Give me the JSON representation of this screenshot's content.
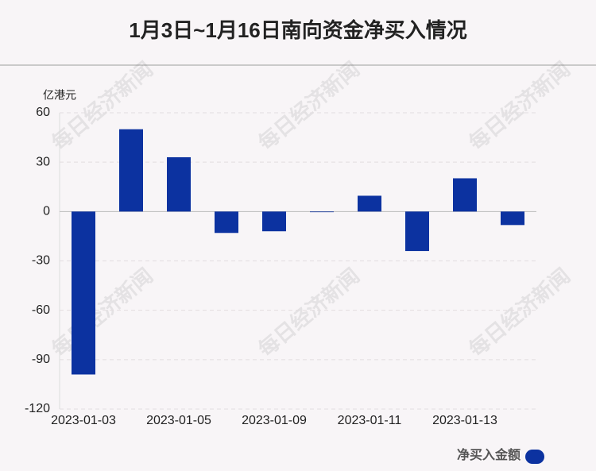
{
  "chart_data": {
    "type": "bar",
    "title": "1月3日~1月16日南向资金净买入情况",
    "y_label": "亿港元",
    "watermark": "每日经济新闻",
    "categories": [
      "2023-01-03",
      null,
      "2023-01-05",
      null,
      "2023-01-09",
      null,
      "2023-01-11",
      null,
      "2023-01-13",
      null
    ],
    "series": [
      {
        "name": "净买入金额",
        "color": "#0c32a0",
        "values": [
          -99,
          50,
          33,
          -13,
          -12,
          -0.2,
          9.6,
          -24,
          20.2,
          -8.2
        ]
      }
    ],
    "ylim": [
      -120,
      60
    ],
    "yticks": [
      -120,
      -90,
      -60,
      -30,
      0,
      30,
      60
    ],
    "grid": true,
    "legend": "bottom-right"
  }
}
